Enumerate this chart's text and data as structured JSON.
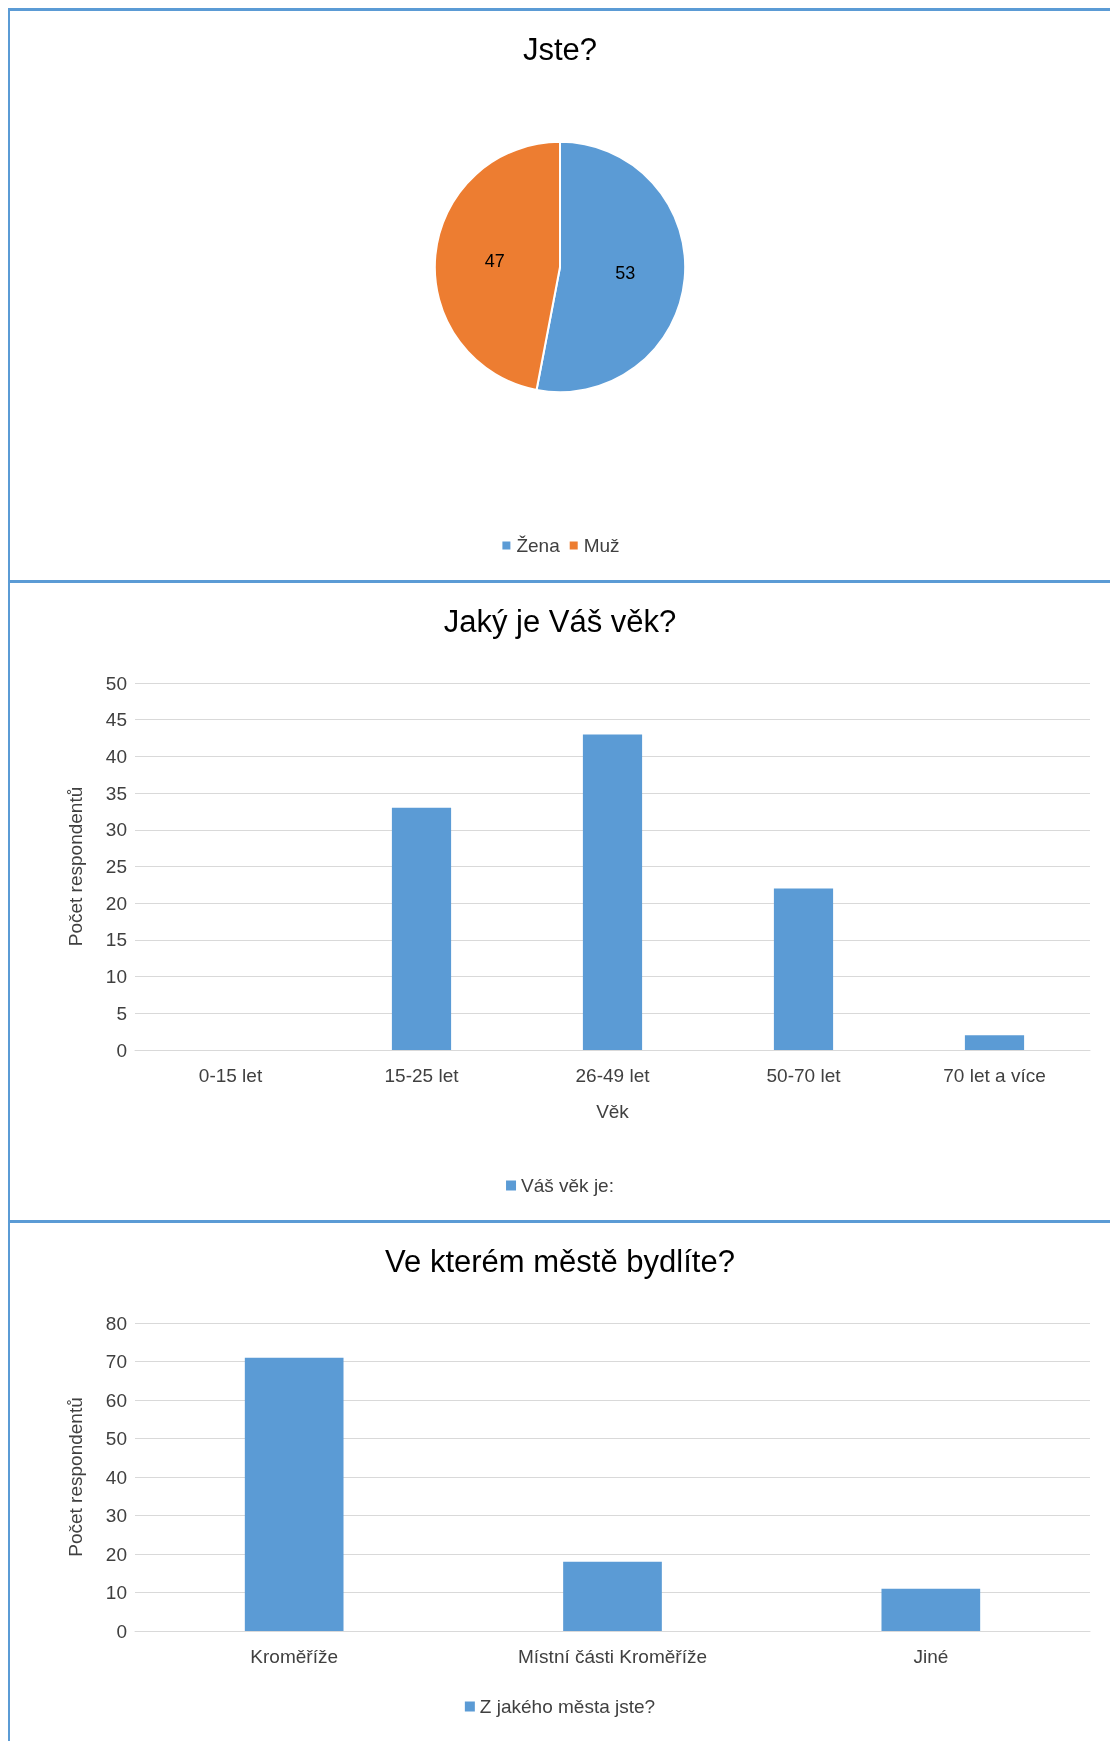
{
  "chart_data": [
    {
      "type": "pie",
      "title": "Jste?",
      "categories": [
        "Žena",
        "Muž"
      ],
      "values": [
        53,
        47
      ],
      "colors": [
        "#5b9bd5",
        "#ed7d31"
      ],
      "data_labels": true,
      "legend": "bottom"
    },
    {
      "type": "bar",
      "title": "Jaký je Váš věk?",
      "xlabel": "Věk",
      "ylabel": "Počet respondentů",
      "categories": [
        "0-15 let",
        "15-25 let",
        "26-49 let",
        "50-70 let",
        "70 let a více"
      ],
      "series": [
        {
          "name": "Váš věk je:",
          "color": "#5b9bd5",
          "values": [
            0,
            33,
            43,
            22,
            2
          ]
        }
      ],
      "ylim": [
        0,
        50
      ],
      "yticks": [
        0,
        5,
        10,
        15,
        20,
        25,
        30,
        35,
        40,
        45,
        50
      ],
      "grid": "y",
      "legend": "bottom"
    },
    {
      "type": "bar",
      "title": "Ve kterém městě bydlíte?",
      "ylabel": "Počet respondentů",
      "categories": [
        "Kroměříže",
        "Místní části Kroměříže",
        "Jiné"
      ],
      "series": [
        {
          "name": "Z jakého města jste?",
          "color": "#5b9bd5",
          "values": [
            71,
            18,
            11
          ]
        }
      ],
      "ylim": [
        0,
        80
      ],
      "yticks": [
        0,
        10,
        20,
        30,
        40,
        50,
        60,
        70,
        80
      ],
      "grid": "y",
      "legend": "bottom"
    }
  ]
}
